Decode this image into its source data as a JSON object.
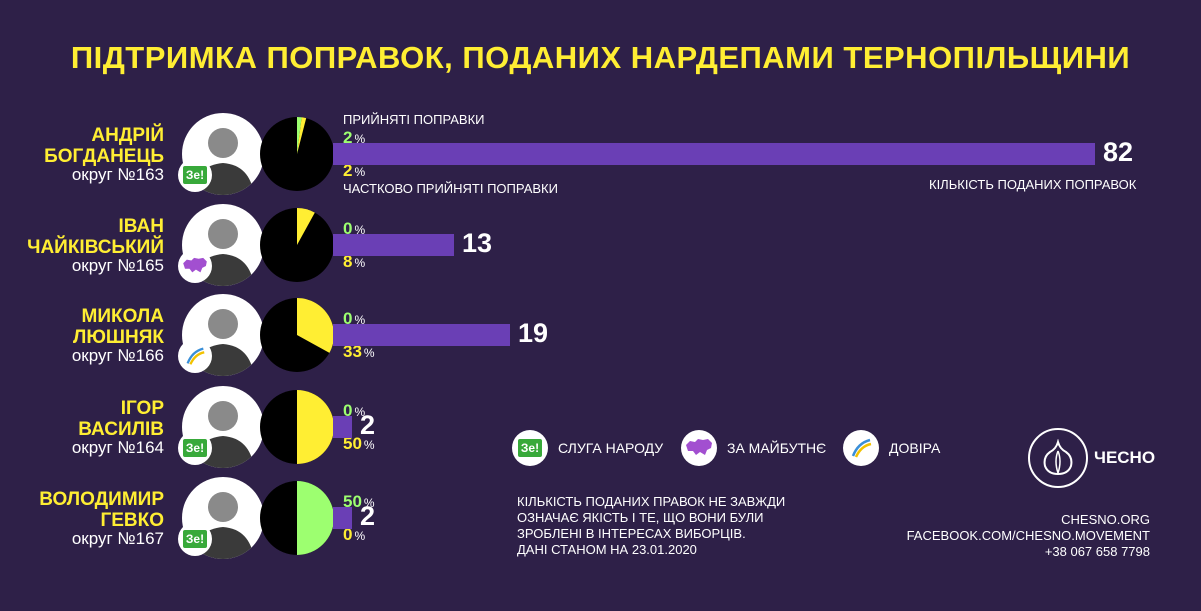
{
  "title": "ПІДТРИМКА ПОПРАВОК, ПОДАНИХ НАРДЕПАМИ ТЕРНОПІЛЬЩИНИ",
  "labels": {
    "accepted": "ПРИЙНЯТІ ПОПРАВКИ",
    "partial": "ЧАСТКОВО ПРИЙНЯТІ ПОПРАВКИ",
    "count": "КІЛЬКІСТЬ ПОДАНИХ ПОПРАВОК",
    "pct_sign": "%"
  },
  "colors": {
    "background": "#2e2048",
    "accent_yellow": "#ffee33",
    "accent_green": "#9dff70",
    "bar": "#6a3fb5",
    "pie_base": "#000000"
  },
  "deputies": [
    {
      "name_line1": "АНДРІЙ",
      "name_line2": "БОГДАНЕЦЬ",
      "district": "округ №163",
      "party_icon": "ze-badge",
      "accepted_pct": "2",
      "partial_pct": "2",
      "amendments": "82"
    },
    {
      "name_line1": "ІВАН",
      "name_line2": "ЧАЙКІВСЬКИЙ",
      "district": "округ №165",
      "party_icon": "ukraine-map-icon",
      "accepted_pct": "0",
      "partial_pct": "8",
      "amendments": "13"
    },
    {
      "name_line1": "МИКОЛА",
      "name_line2": "ЛЮШНЯК",
      "district": "округ №166",
      "party_icon": "dovira-icon",
      "accepted_pct": "0",
      "partial_pct": "33",
      "amendments": "19"
    },
    {
      "name_line1": "ІГОР",
      "name_line2": "ВАСИЛІВ",
      "district": "округ №164",
      "party_icon": "ze-badge",
      "accepted_pct": "0",
      "partial_pct": "50",
      "amendments": "2"
    },
    {
      "name_line1": "ВОЛОДИМИР",
      "name_line2": "ГЕВКО",
      "district": "округ №167",
      "party_icon": "ze-badge",
      "accepted_pct": "50",
      "partial_pct": "0",
      "amendments": "2"
    }
  ],
  "legend": [
    {
      "icon": "ze-badge",
      "label": "СЛУГА НАРОДУ",
      "badge_text": "Зе!"
    },
    {
      "icon": "ukraine-map-icon",
      "label": "ЗА МАЙБУТНЄ"
    },
    {
      "icon": "dovira-icon",
      "label": "ДОВІРА"
    }
  ],
  "ze_text": "Зе!",
  "note": {
    "line1": "КІЛЬКІСТЬ ПОДАНИХ ПРАВОК НЕ ЗАВЖДИ",
    "line2": "ОЗНАЧАЄ ЯКІСТЬ І ТЕ, ЩО ВОНИ БУЛИ",
    "line3": "ЗРОБЛЕНІ В ІНТЕРЕСАХ ВИБОРЦІВ.",
    "line4": "ДАНІ СТАНОМ НА 23.01.2020"
  },
  "logo_text": "ЧЕСНО",
  "contacts": {
    "site": "CHESNO.ORG",
    "facebook": "FACEBOOK.COM/CHESNO.MOVEMENT",
    "phone": "+38 067 658 7798"
  },
  "chart_data": {
    "type": "bar",
    "title": "ПІДТРИМКА ПОПРАВОК, ПОДАНИХ НАРДЕПАМИ ТЕРНОПІЛЬЩИНИ",
    "categories": [
      "АНДРІЙ БОГДАНЕЦЬ",
      "ІВАН ЧАЙКІВСЬКИЙ",
      "МИКОЛА ЛЮШНЯК",
      "ІГОР ВАСИЛІВ",
      "ВОЛОДИМИР ГЕВКО"
    ],
    "series": [
      {
        "name": "КІЛЬКІСТЬ ПОДАНИХ ПОПРАВОК",
        "values": [
          82,
          13,
          19,
          2,
          2
        ]
      },
      {
        "name": "ПРИЙНЯТІ ПОПРАВКИ",
        "values": [
          2,
          0,
          0,
          0,
          50
        ]
      },
      {
        "name": "ЧАСТКОВО ПРИЙНЯТІ ПОПРАВКИ",
        "values": [
          2,
          8,
          33,
          50,
          0
        ]
      }
    ]
  }
}
